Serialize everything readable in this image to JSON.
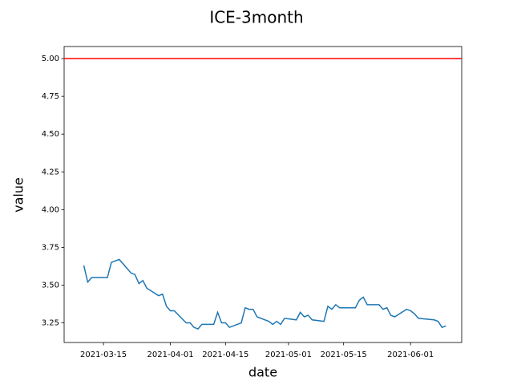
{
  "chart_data": {
    "type": "line",
    "title": "ICE-3month",
    "xlabel": "date",
    "ylabel": "value",
    "x": [
      "2021-03-10",
      "2021-03-11",
      "2021-03-12",
      "2021-03-16",
      "2021-03-17",
      "2021-03-19",
      "2021-03-22",
      "2021-03-23",
      "2021-03-24",
      "2021-03-25",
      "2021-03-26",
      "2021-03-29",
      "2021-03-30",
      "2021-03-31",
      "2021-04-01",
      "2021-04-02",
      "2021-04-05",
      "2021-04-06",
      "2021-04-07",
      "2021-04-08",
      "2021-04-09",
      "2021-04-12",
      "2021-04-13",
      "2021-04-14",
      "2021-04-15",
      "2021-04-16",
      "2021-04-19",
      "2021-04-20",
      "2021-04-21",
      "2021-04-22",
      "2021-04-23",
      "2021-04-26",
      "2021-04-27",
      "2021-04-28",
      "2021-04-29",
      "2021-04-30",
      "2021-05-03",
      "2021-05-04",
      "2021-05-05",
      "2021-05-06",
      "2021-05-07",
      "2021-05-10",
      "2021-05-11",
      "2021-05-12",
      "2021-05-13",
      "2021-05-14",
      "2021-05-18",
      "2021-05-19",
      "2021-05-20",
      "2021-05-21",
      "2021-05-24",
      "2021-05-25",
      "2021-05-26",
      "2021-05-27",
      "2021-05-28",
      "2021-05-31",
      "2021-06-01",
      "2021-06-02",
      "2021-06-03",
      "2021-06-07",
      "2021-06-08",
      "2021-06-09",
      "2021-06-10"
    ],
    "series": [
      {
        "color": "#1f77b4",
        "values": [
          3.63,
          3.52,
          3.55,
          3.55,
          3.65,
          3.67,
          3.58,
          3.57,
          3.51,
          3.53,
          3.48,
          3.43,
          3.44,
          3.36,
          3.33,
          3.33,
          3.25,
          3.25,
          3.22,
          3.21,
          3.24,
          3.24,
          3.32,
          3.25,
          3.25,
          3.22,
          3.25,
          3.35,
          3.34,
          3.34,
          3.29,
          3.26,
          3.24,
          3.26,
          3.24,
          3.28,
          3.27,
          3.32,
          3.29,
          3.3,
          3.27,
          3.26,
          3.36,
          3.34,
          3.37,
          3.35,
          3.35,
          3.4,
          3.42,
          3.37,
          3.37,
          3.34,
          3.35,
          3.3,
          3.29,
          3.34,
          3.33,
          3.31,
          3.28,
          3.27,
          3.26,
          3.22,
          3.23
        ]
      }
    ],
    "hline": {
      "value": 5,
      "color": "#ff0000"
    },
    "xlim": [
      "2021-03-05",
      "2021-06-14"
    ],
    "xticks": [
      "2021-03-15",
      "2021-04-01",
      "2021-04-15",
      "2021-05-01",
      "2021-05-15",
      "2021-06-01"
    ],
    "ylim": [
      3.12,
      5.08
    ],
    "yticks": [
      {
        "value": 3.25,
        "label": "3.25"
      },
      {
        "value": 3.5,
        "label": "3.50"
      },
      {
        "value": 3.75,
        "label": "3.75"
      },
      {
        "value": 4,
        "label": "4.00"
      },
      {
        "value": 4.25,
        "label": "4.25"
      },
      {
        "value": 4.5,
        "label": "4.50"
      },
      {
        "value": 4.75,
        "label": "4.75"
      },
      {
        "value": 5,
        "label": "5.00"
      }
    ]
  }
}
